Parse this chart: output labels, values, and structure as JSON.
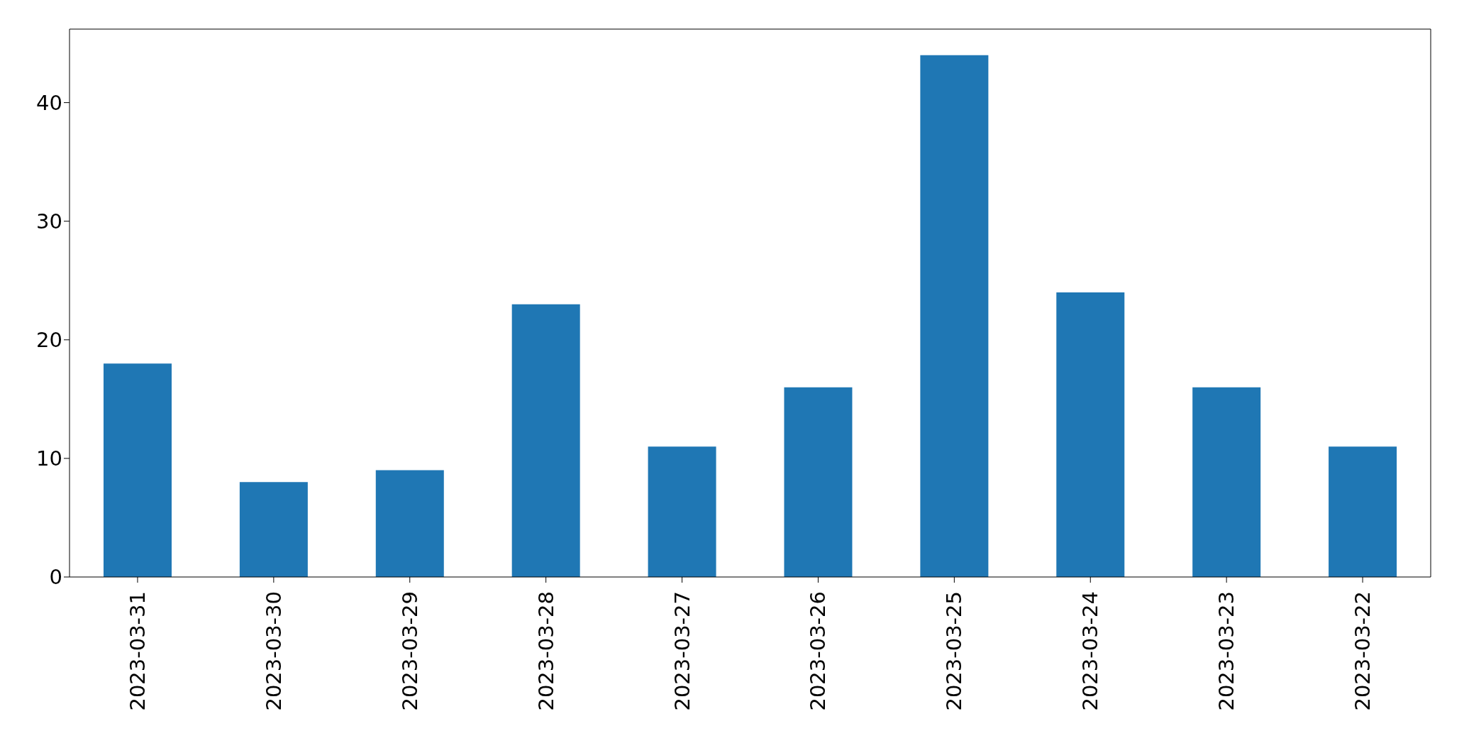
{
  "chart_data": {
    "type": "bar",
    "categories": [
      "2023-03-31",
      "2023-03-30",
      "2023-03-29",
      "2023-03-28",
      "2023-03-27",
      "2023-03-26",
      "2023-03-25",
      "2023-03-24",
      "2023-03-23",
      "2023-03-22"
    ],
    "values": [
      18,
      8,
      9,
      23,
      11,
      16,
      44,
      24,
      16,
      11
    ],
    "color": "#1f77b4",
    "ylim": [
      0,
      46.2
    ],
    "yticks": [
      0,
      10,
      20,
      30,
      40
    ],
    "grid": false,
    "legend": false
  }
}
